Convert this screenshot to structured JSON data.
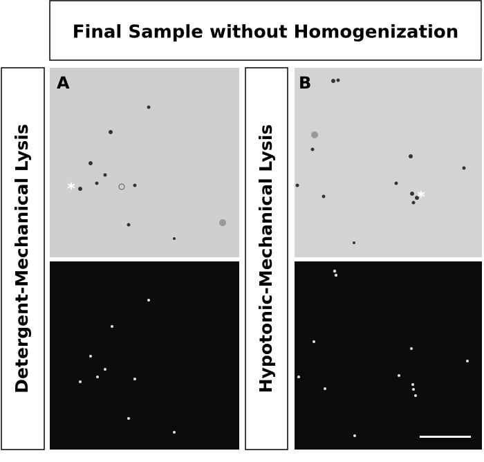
{
  "header": {
    "title": "Final Sample without Homogenization"
  },
  "rows": [
    {
      "label": "Detergent-Mechanical Lysis"
    },
    {
      "label": "Hypotonic-Mechanical Lysis"
    }
  ],
  "panels": [
    {
      "label": "A",
      "annotation": "*"
    },
    {
      "label": "B",
      "annotation": "*"
    }
  ]
}
